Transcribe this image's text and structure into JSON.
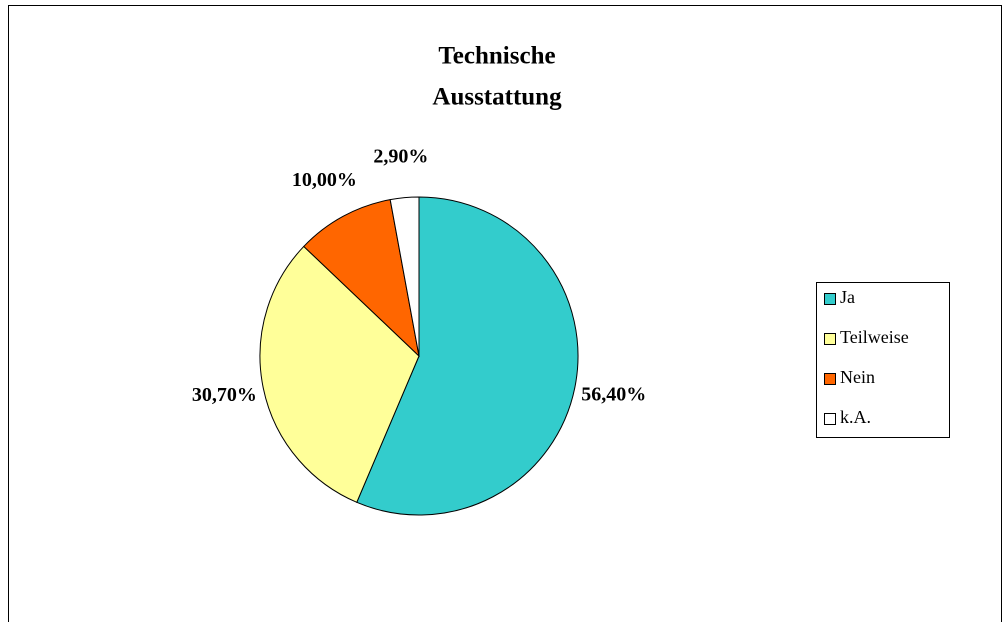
{
  "chart_data": {
    "type": "pie",
    "title": [
      "Technische",
      "Ausstattung"
    ],
    "categories": [
      "Ja",
      "Teilweise",
      "Nein",
      "k.A."
    ],
    "values": [
      56.4,
      30.7,
      10.0,
      2.9
    ],
    "value_labels": [
      "56,40%",
      "30,70%",
      "10,00%",
      "2,90%"
    ],
    "colors": [
      "#33CCCC",
      "#FFFF99",
      "#FF6600",
      "#FFFFFF"
    ],
    "legend": "right"
  }
}
